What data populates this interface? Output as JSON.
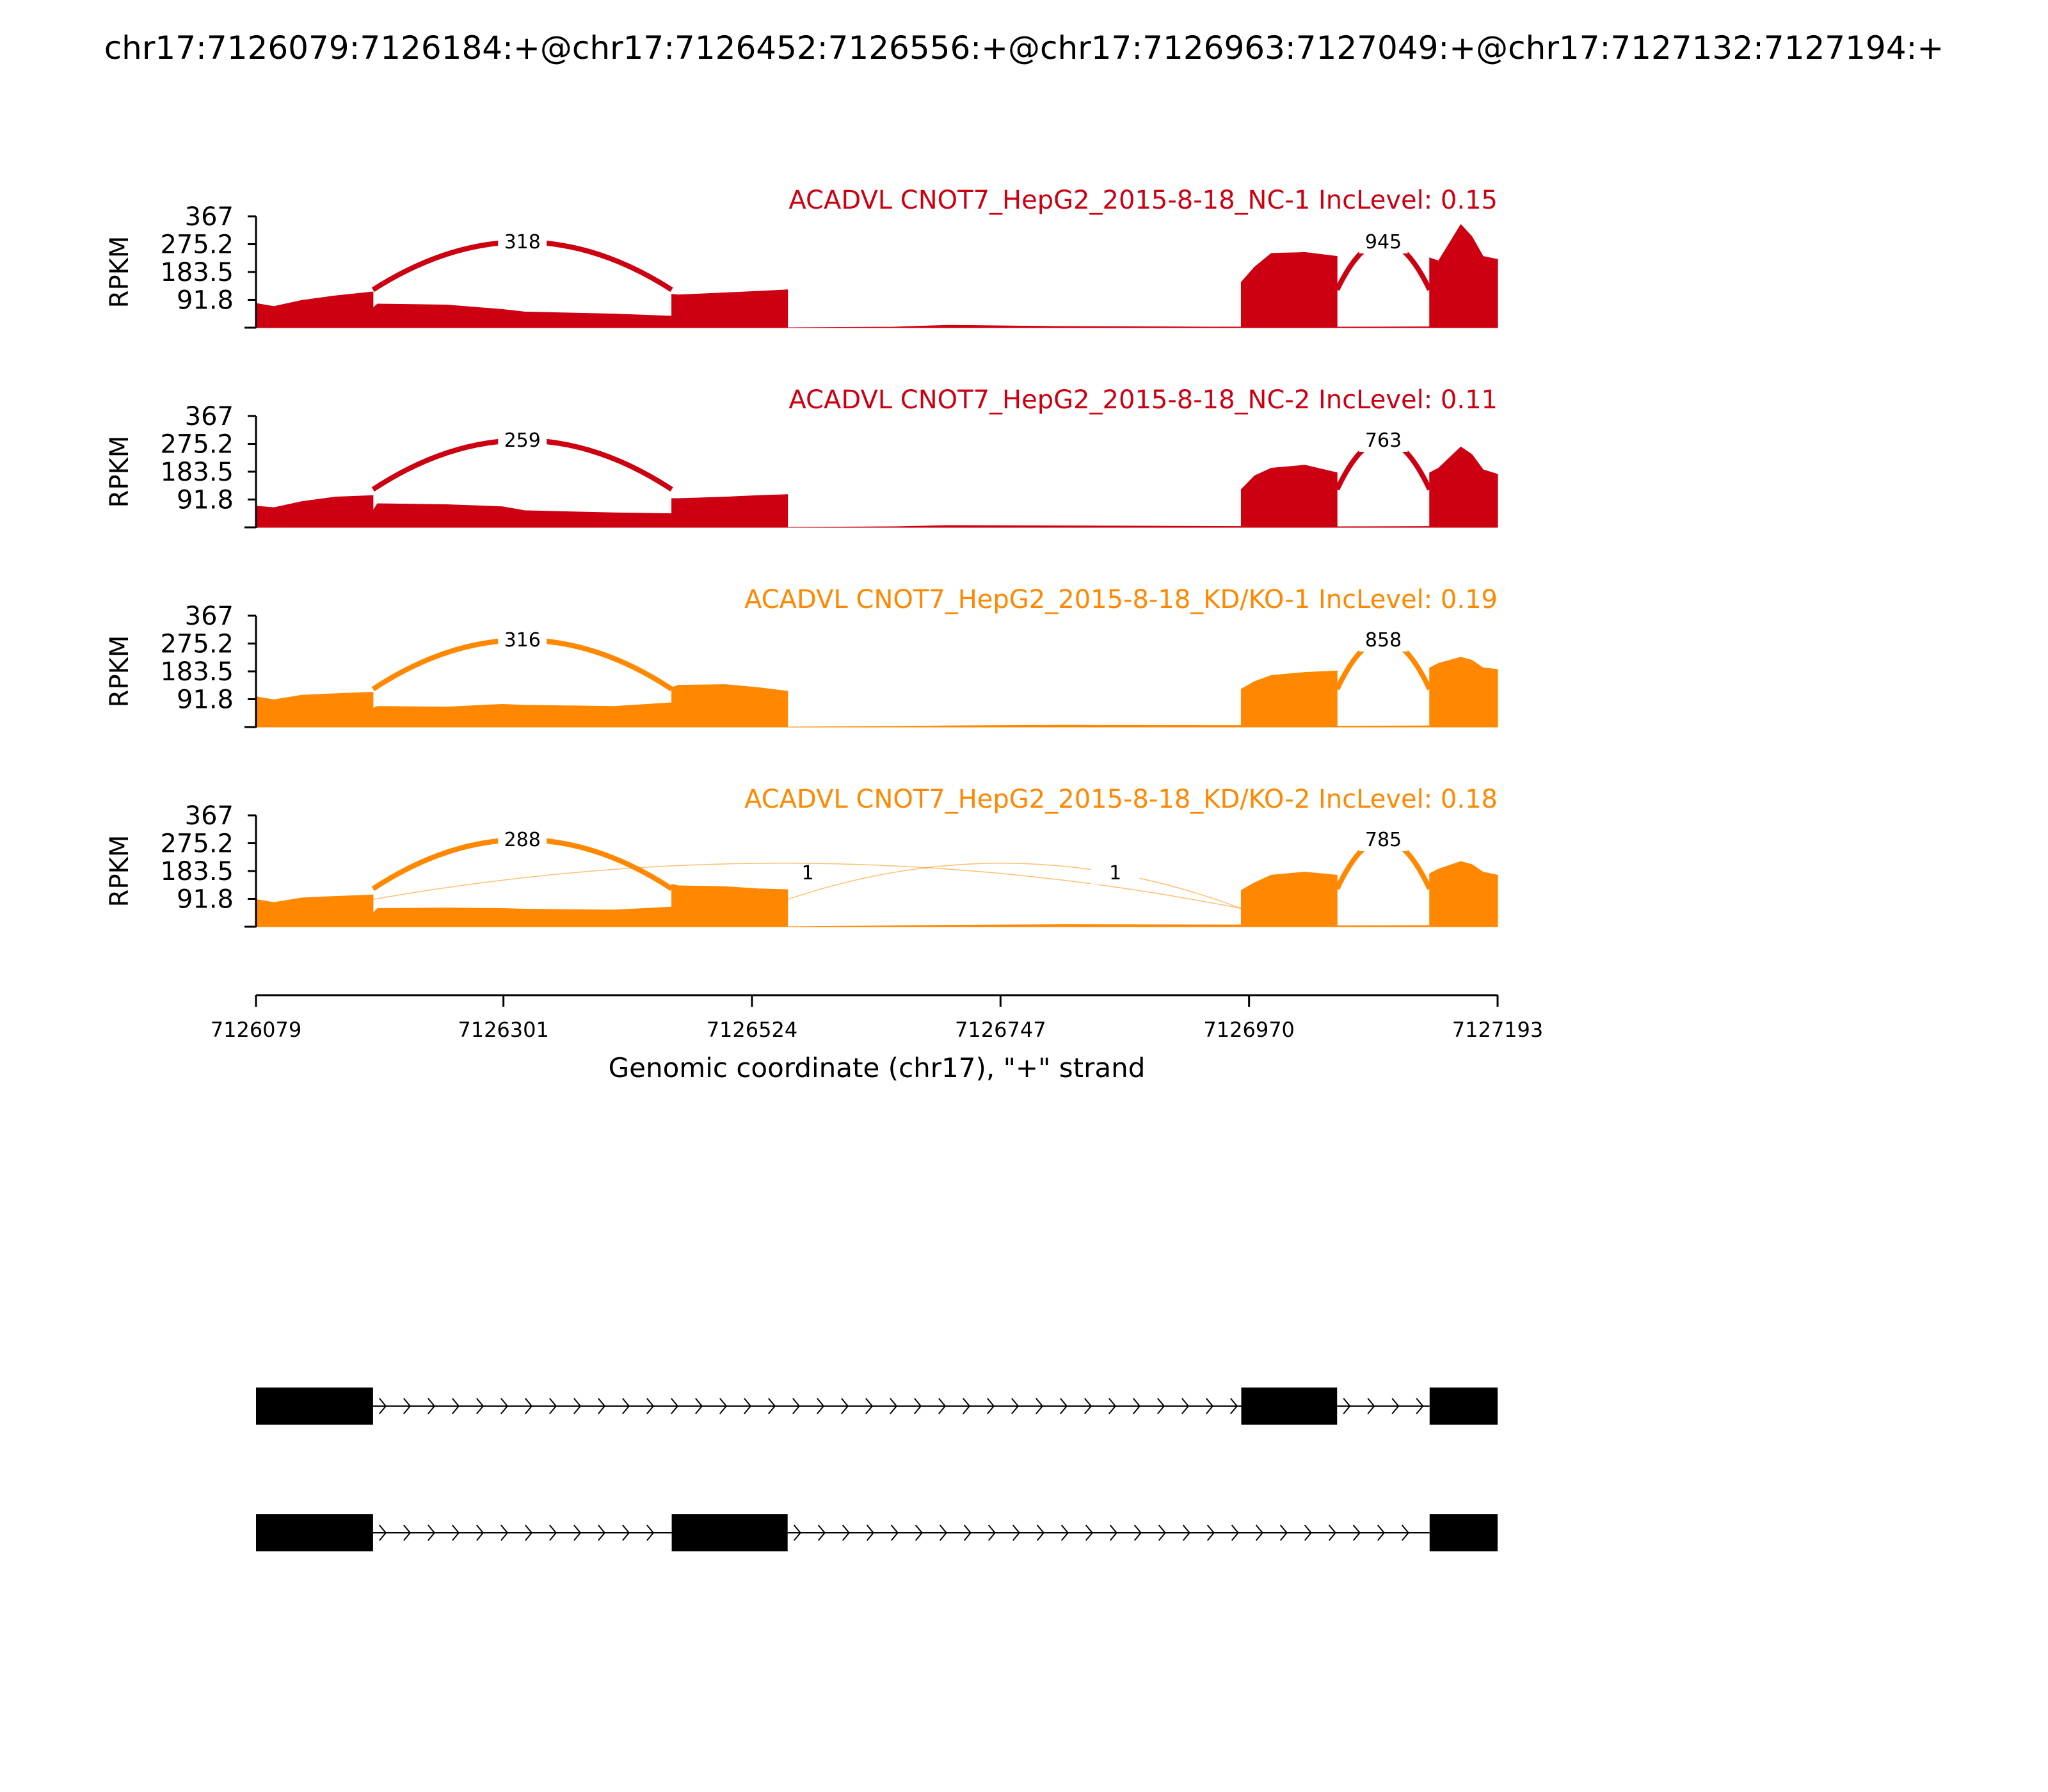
{
  "title": "chr17:7126079:7126184:+@chr17:7126452:7126556:+@chr17:7126963:7127049:+@chr17:7127132:7127194:+",
  "chart_data": {
    "type": "area",
    "y_axis_label": "RPKM",
    "y_ticks": [
      "367",
      "275.2",
      "183.5",
      "91.8"
    ],
    "y_range": [
      0,
      367
    ],
    "x_axis_label": "Genomic coordinate (chr17), \"+\" strand",
    "x_ticks": [
      "7126079",
      "7126301",
      "7126524",
      "7126747",
      "7126970",
      "7127193"
    ],
    "x_range": [
      7126079,
      7127193
    ],
    "exons": [
      [
        7126079,
        7126184
      ],
      [
        7126452,
        7126556
      ],
      [
        7126963,
        7127049
      ],
      [
        7127132,
        7127193
      ]
    ],
    "tracks": [
      {
        "label": "ACADVL CNOT7_HepG2_2015-8-18_NC-1 IncLevel: 0.15",
        "color": "#cc0011",
        "coverage_segments": [
          {
            "x": [
              7126079,
              7126095,
              7126120,
              7126150,
              7126184
            ],
            "y": [
              80,
              70,
              90,
              105,
              118
            ]
          },
          {
            "x": [
              7126184,
              7126188,
              7126250,
              7126300,
              7126320,
              7126400,
              7126452
            ],
            "y": [
              65,
              78,
              75,
              60,
              52,
              45,
              38
            ]
          },
          {
            "x": [
              7126452,
              7126458,
              7126500,
              7126530,
              7126556
            ],
            "y": [
              110,
              108,
              115,
              120,
              125
            ]
          },
          {
            "x": [
              7126556,
              7126650,
              7126700,
              7126800,
              7126963
            ],
            "y": [
              0,
              2,
              8,
              4,
              2
            ]
          },
          {
            "x": [
              7126963,
              7126975,
              7126990,
              7127020,
              7127049
            ],
            "y": [
              150,
              200,
              245,
              248,
              235
            ]
          },
          {
            "x": [
              7127049,
              7127132
            ],
            "y": [
              2,
              3
            ]
          },
          {
            "x": [
              7127132,
              7127140,
              7127160,
              7127170,
              7127180,
              7127193
            ],
            "y": [
              230,
              220,
              340,
              300,
              235,
              225
            ]
          }
        ],
        "junctions": [
          {
            "from": 7126184,
            "to": 7126452,
            "count": "318",
            "main": true
          },
          {
            "from": 7127049,
            "to": 7127132,
            "count": "945",
            "main": true
          }
        ]
      },
      {
        "label": "ACADVL CNOT7_HepG2_2015-8-18_NC-2 IncLevel: 0.11",
        "color": "#cc0011",
        "coverage_segments": [
          {
            "x": [
              7126079,
              7126095,
              7126120,
              7126150,
              7126184
            ],
            "y": [
              70,
              65,
              85,
              100,
              105
            ]
          },
          {
            "x": [
              7126184,
              7126188,
              7126250,
              7126300,
              7126320,
              7126400,
              7126452
            ],
            "y": [
              55,
              78,
              75,
              68,
              55,
              48,
              45
            ]
          },
          {
            "x": [
              7126452,
              7126458,
              7126500,
              7126530,
              7126556
            ],
            "y": [
              95,
              95,
              100,
              105,
              108
            ]
          },
          {
            "x": [
              7126556,
              7126650,
              7126700,
              7126800,
              7126963
            ],
            "y": [
              0,
              2,
              6,
              5,
              3
            ]
          },
          {
            "x": [
              7126963,
              7126975,
              7126990,
              7127020,
              7127049
            ],
            "y": [
              125,
              170,
              195,
              205,
              180
            ]
          },
          {
            "x": [
              7127049,
              7127132
            ],
            "y": [
              2,
              3
            ]
          },
          {
            "x": [
              7127132,
              7127140,
              7127160,
              7127170,
              7127180,
              7127193
            ],
            "y": [
              180,
              195,
              265,
              240,
              190,
              175
            ]
          }
        ],
        "junctions": [
          {
            "from": 7126184,
            "to": 7126452,
            "count": "259",
            "main": true
          },
          {
            "from": 7127049,
            "to": 7127132,
            "count": "763",
            "main": true
          }
        ]
      },
      {
        "label": "ACADVL CNOT7_HepG2_2015-8-18_KD/KO-1 IncLevel: 0.19",
        "color": "#ff8800",
        "coverage_segments": [
          {
            "x": [
              7126079,
              7126095,
              7126120,
              7126150,
              7126184
            ],
            "y": [
              100,
              90,
              105,
              110,
              115
            ]
          },
          {
            "x": [
              7126184,
              7126188,
              7126250,
              7126300,
              7126320,
              7126400,
              7126452
            ],
            "y": [
              62,
              68,
              66,
              75,
              72,
              68,
              80
            ]
          },
          {
            "x": [
              7126452,
              7126458,
              7126500,
              7126530,
              7126556
            ],
            "y": [
              130,
              138,
              140,
              130,
              118
            ]
          },
          {
            "x": [
              7126556,
              7126650,
              7126700,
              7126800,
              7126963
            ],
            "y": [
              0,
              2,
              4,
              6,
              5
            ]
          },
          {
            "x": [
              7126963,
              7126975,
              7126990,
              7127020,
              7127049
            ],
            "y": [
              125,
              150,
              170,
              180,
              185
            ]
          },
          {
            "x": [
              7127049,
              7127132
            ],
            "y": [
              3,
              4
            ]
          },
          {
            "x": [
              7127132,
              7127140,
              7127160,
              7127170,
              7127180,
              7127193
            ],
            "y": [
              195,
              210,
              230,
              220,
              195,
              190
            ]
          }
        ],
        "junctions": [
          {
            "from": 7126184,
            "to": 7126452,
            "count": "316",
            "main": true
          },
          {
            "from": 7127049,
            "to": 7127132,
            "count": "858",
            "main": true
          }
        ]
      },
      {
        "label": "ACADVL CNOT7_HepG2_2015-8-18_KD/KO-2 IncLevel: 0.18",
        "color": "#ff8800",
        "coverage_segments": [
          {
            "x": [
              7126079,
              7126095,
              7126120,
              7126150,
              7126184
            ],
            "y": [
              90,
              80,
              95,
              100,
              105
            ]
          },
          {
            "x": [
              7126184,
              7126188,
              7126250,
              7126300,
              7126320,
              7126400,
              7126452
            ],
            "y": [
              45,
              60,
              62,
              60,
              58,
              55,
              65
            ]
          },
          {
            "x": [
              7126452,
              7126458,
              7126500,
              7126530,
              7126556
            ],
            "y": [
              140,
              135,
              132,
              125,
              122
            ]
          },
          {
            "x": [
              7126556,
              7126650,
              7126700,
              7126800,
              7126963
            ],
            "y": [
              0,
              3,
              5,
              7,
              6
            ]
          },
          {
            "x": [
              7126963,
              7126975,
              7126990,
              7127020,
              7127049
            ],
            "y": [
              120,
              145,
              170,
              180,
              170
            ]
          },
          {
            "x": [
              7127049,
              7127132
            ],
            "y": [
              3,
              4
            ]
          },
          {
            "x": [
              7127132,
              7127140,
              7127160,
              7127170,
              7127180,
              7127193
            ],
            "y": [
              175,
              190,
              215,
              205,
              180,
              170
            ]
          }
        ],
        "junctions": [
          {
            "from": 7126184,
            "to": 7126452,
            "count": "288",
            "main": true
          },
          {
            "from": 7126556,
            "to": 7126963,
            "count": "1",
            "main": false,
            "label_at": 7126574
          },
          {
            "from": 7126184,
            "to": 7126963,
            "count": "1",
            "main": false,
            "label_at": 7126850
          },
          {
            "from": 7127049,
            "to": 7127132,
            "count": "785",
            "main": true
          }
        ]
      }
    ],
    "isoforms": [
      {
        "exons": [
          [
            7126079,
            7126184
          ],
          [
            7126963,
            7127049
          ],
          [
            7127132,
            7127193
          ]
        ]
      },
      {
        "exons": [
          [
            7126079,
            7126184
          ],
          [
            7126452,
            7126556
          ],
          [
            7127132,
            7127193
          ]
        ]
      }
    ]
  }
}
